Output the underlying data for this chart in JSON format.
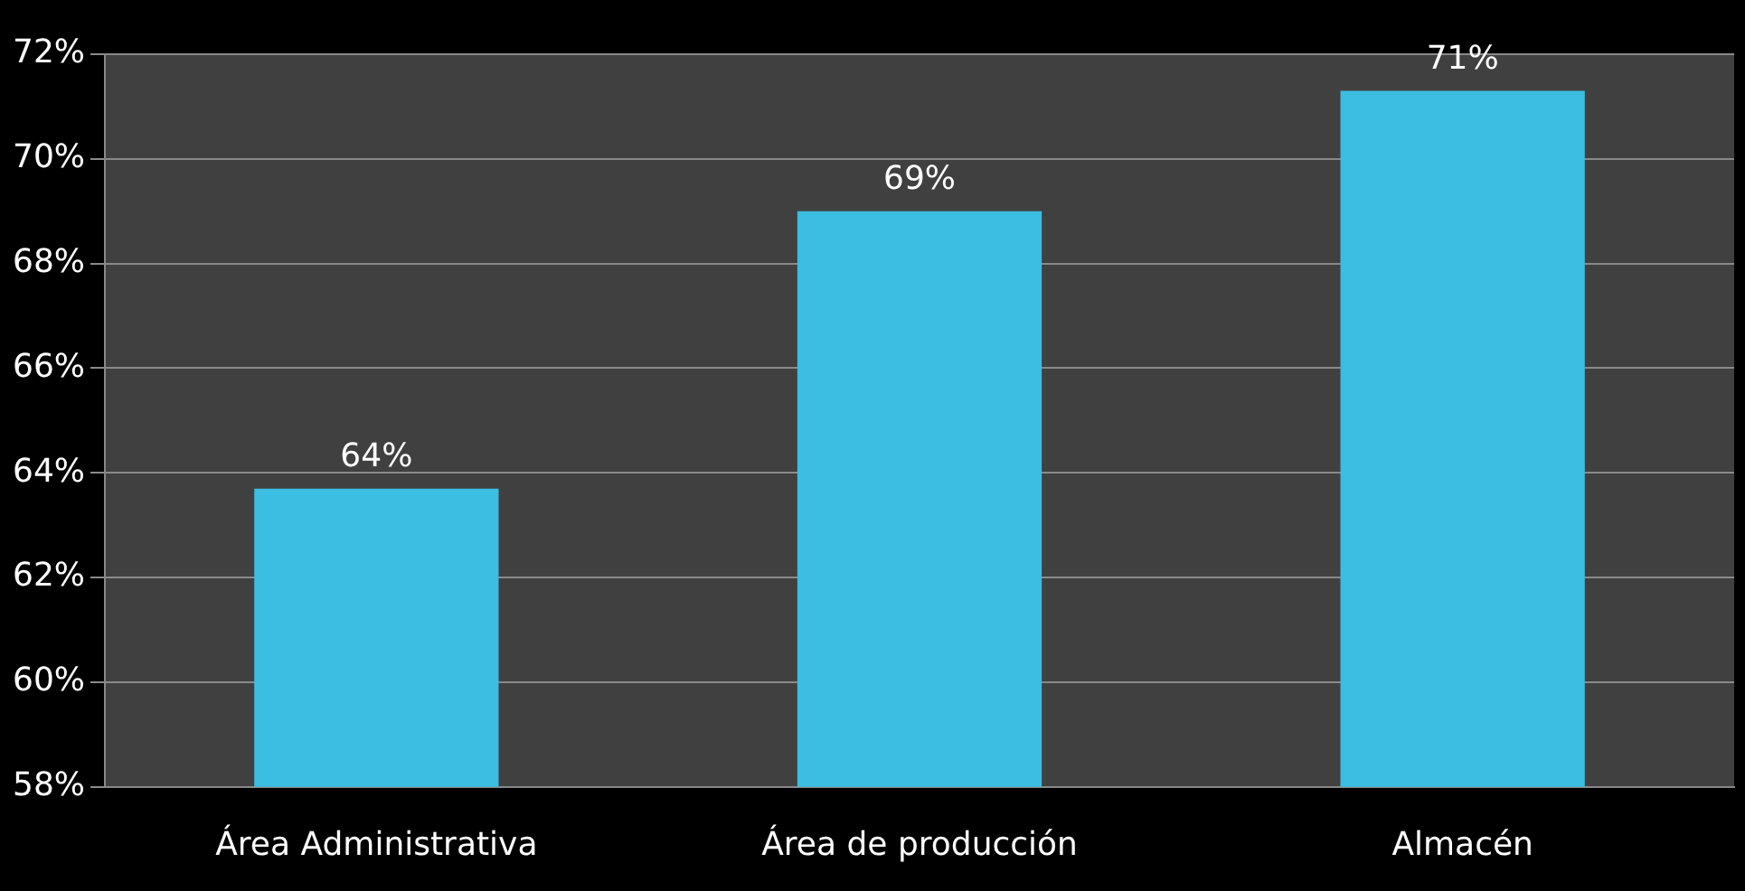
{
  "chart_data": {
    "type": "bar",
    "categories": [
      "Área Administrativa",
      "Área de producción",
      "Almacén"
    ],
    "values": [
      63.7,
      69.0,
      71.3
    ],
    "value_labels": [
      "64%",
      "69%",
      "71%"
    ],
    "color": "#3cbde2",
    "ylim": [
      58,
      72
    ],
    "yticks": [
      {
        "value": 58,
        "label": "58%"
      },
      {
        "value": 60,
        "label": "60%"
      },
      {
        "value": 62,
        "label": "62%"
      },
      {
        "value": 64,
        "label": "64%"
      },
      {
        "value": 66,
        "label": "66%"
      },
      {
        "value": 68,
        "label": "68%"
      },
      {
        "value": 70,
        "label": "70%"
      },
      {
        "value": 72,
        "label": "72%"
      }
    ],
    "grid": "y",
    "legend": false
  }
}
